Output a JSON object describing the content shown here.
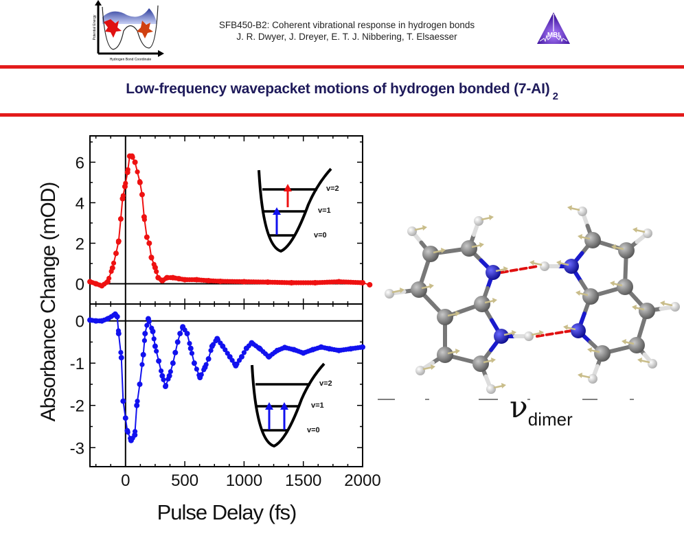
{
  "header": {
    "line1": "SFB450-B2: Coherent vibrational response in hydrogen bonds",
    "line2": "J. R. Dwyer, J. Dreyer, E. T. J. Nibbering, T. Elsaesser",
    "logo_left": {
      "y_axis": "Potential Energy",
      "x_axis": "Hydrogen Bond Coordinate"
    },
    "logo_right": {
      "text": "MBI"
    }
  },
  "title": {
    "main": "Low-frequency wavepacket motions of hydrogen bonded (7-AI)",
    "subscript": "2"
  },
  "colors": {
    "accent_red": "#e31b1b",
    "title_navy": "#1e1a5a",
    "red_series": "#ee1111",
    "blue_series": "#1111ee"
  },
  "chart_data": [
    {
      "type": "line",
      "panel": "top",
      "xlabel": "Pulse Delay (fs)",
      "ylabel": "Absorbance Change (mOD)",
      "xlim": [
        -300,
        2000
      ],
      "ylim": [
        -1,
        7.3
      ],
      "yticks": [
        "0",
        "2",
        "4",
        "6"
      ],
      "xticks": [
        "0",
        "500",
        "1000",
        "1500",
        "2000"
      ],
      "series": [
        {
          "name": "v=1 to v=2 (red)",
          "x": [
            -300,
            -250,
            -200,
            -150,
            -110,
            -80,
            -58,
            -40,
            -25,
            -5,
            17,
            35,
            55,
            80,
            122,
            140,
            157,
            180,
            200,
            218,
            250,
            275,
            310,
            350,
            400,
            450,
            500,
            600,
            700,
            800,
            1000,
            1200,
            1400,
            1600,
            1800,
            2000,
            2060
          ],
          "y": [
            0.1,
            0,
            -0.1,
            0.1,
            0.78,
            1.5,
            2.1,
            3.2,
            4.2,
            4.8,
            5.5,
            6.3,
            6.3,
            6.0,
            5.0,
            4.4,
            3.3,
            2.3,
            2.0,
            1.3,
            0.8,
            0.3,
            0.15,
            0.3,
            0.3,
            0.25,
            0.2,
            0.2,
            0.15,
            0.12,
            0.1,
            0.08,
            0.05,
            0.05,
            0.1,
            0.05,
            -0.05
          ]
        }
      ],
      "inset": {
        "labels": [
          "v=2",
          "v=1",
          "v=0"
        ]
      }
    },
    {
      "type": "line",
      "panel": "bottom",
      "xlim": [
        -300,
        2000
      ],
      "ylim": [
        -3.45,
        0.4
      ],
      "yticks": [
        "0",
        "-1",
        "-2",
        "-3"
      ],
      "series": [
        {
          "name": "v=0 to v=1 (blue)",
          "x": [
            -300,
            -250,
            -200,
            -150,
            -87,
            -70,
            -58,
            -35,
            -20,
            0,
            15,
            47,
            78,
            95,
            120,
            150,
            165,
            192,
            230,
            250,
            280,
            310,
            337,
            370,
            400,
            420,
            440,
            460,
            483,
            520,
            550,
            580,
            628,
            670,
            700,
            730,
            773,
            820,
            880,
            930,
            980,
            1020,
            1064,
            1130,
            1209,
            1280,
            1343,
            1420,
            1500,
            1580,
            1650,
            1720,
            1800,
            1900,
            2000
          ],
          "y": [
            0.02,
            0,
            0,
            0.05,
            0.16,
            0.1,
            -0.3,
            -0.87,
            -1.9,
            -2.3,
            -2.6,
            -2.83,
            -2.7,
            -2.0,
            -1.5,
            -0.8,
            -0.3,
            0.05,
            -0.25,
            -0.6,
            -0.95,
            -1.3,
            -1.55,
            -1.3,
            -1.0,
            -0.75,
            -0.5,
            -0.3,
            -0.14,
            -0.3,
            -0.65,
            -1.0,
            -1.34,
            -1.1,
            -0.9,
            -0.6,
            -0.42,
            -0.6,
            -0.85,
            -1.06,
            -0.85,
            -0.65,
            -0.52,
            -0.65,
            -0.85,
            -0.7,
            -0.63,
            -0.68,
            -0.76,
            -0.68,
            -0.62,
            -0.66,
            -0.7,
            -0.66,
            -0.62
          ]
        }
      ],
      "inset": {
        "labels": [
          "v=2",
          "v=1",
          "v=0"
        ]
      }
    }
  ],
  "molecule": {
    "label_symbol": "ν",
    "label_subscript": "dimer"
  }
}
